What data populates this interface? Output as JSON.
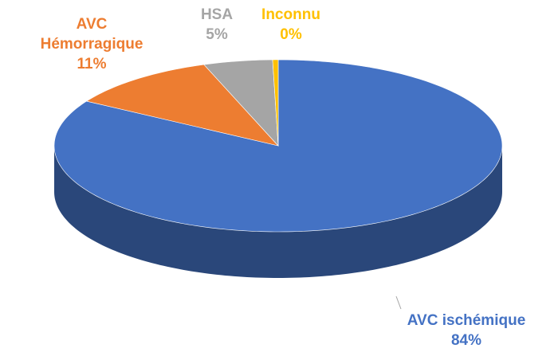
{
  "chart_data": {
    "type": "pie",
    "categories": [
      "AVC ischémique",
      "AVC Hémorragique",
      "HSA",
      "Inconnu"
    ],
    "values": [
      84,
      11,
      5,
      0.4
    ],
    "value_labels": [
      "84%",
      "11%",
      "5%",
      "0%"
    ],
    "colors": [
      "#4472c4",
      "#ed7d31",
      "#a5a5a5",
      "#ffc000"
    ]
  }
}
